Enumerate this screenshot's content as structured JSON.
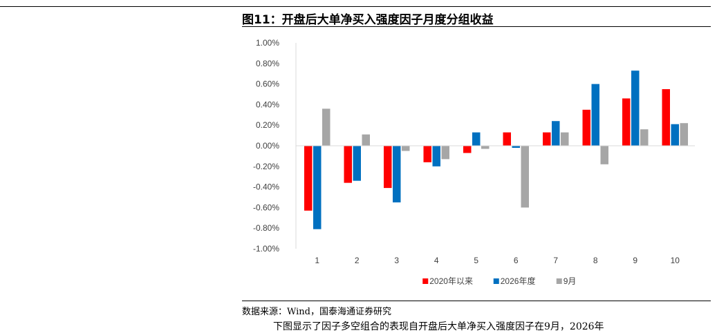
{
  "figure": {
    "title": "图11：开盘后大单净买入强度因子月度分组收益",
    "source": "数据来源：Wind，国泰海通证券研究",
    "footer_partial": "下图显示了因子多空组合的表现自开盘后大单净买入强度因子在9月，2026年"
  },
  "colors": {
    "series_1": "#ff0000",
    "series_2": "#0070c0",
    "series_3": "#a6a6a6",
    "axis": "#d9d9d9",
    "tick_text": "#404040"
  },
  "chart_data": {
    "type": "bar",
    "categories": [
      "1",
      "2",
      "3",
      "4",
      "5",
      "6",
      "7",
      "8",
      "9",
      "10"
    ],
    "series": [
      {
        "name": "2020年以来",
        "values": [
          -0.63,
          -0.36,
          -0.41,
          -0.16,
          -0.07,
          0.13,
          0.13,
          0.35,
          0.46,
          0.55
        ]
      },
      {
        "name": "2026年度",
        "values": [
          -0.81,
          -0.34,
          -0.55,
          -0.2,
          0.13,
          -0.02,
          0.24,
          0.6,
          0.73,
          0.21
        ]
      },
      {
        "name": "9月",
        "values": [
          0.36,
          0.11,
          -0.05,
          -0.13,
          -0.03,
          -0.6,
          0.13,
          -0.18,
          0.16,
          0.22
        ]
      }
    ],
    "yticks": [
      "1.00%",
      "0.80%",
      "0.60%",
      "0.40%",
      "0.20%",
      "0.00%",
      "-0.20%",
      "-0.40%",
      "-0.60%",
      "-0.80%",
      "-1.00%"
    ],
    "ylim": [
      -1.0,
      1.0
    ],
    "grid": false,
    "legend_position": "bottom",
    "title": "",
    "xlabel": "",
    "ylabel": ""
  }
}
